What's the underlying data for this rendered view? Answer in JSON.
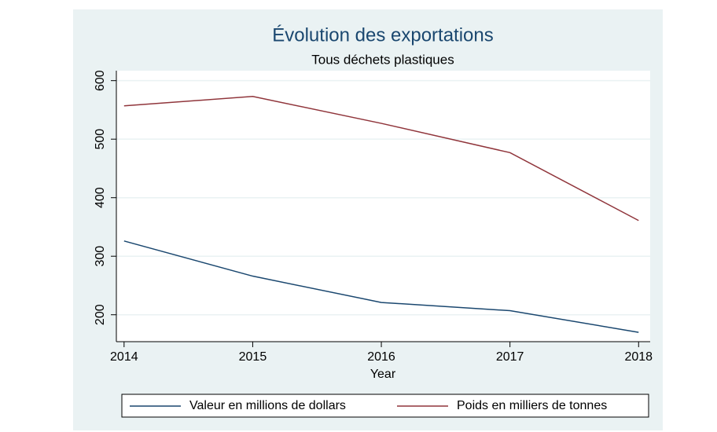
{
  "chart_data": {
    "type": "line",
    "title": "Évolution des exportations",
    "subtitle": "Tous déchets plastiques",
    "x_label": "Year",
    "x": [
      2014,
      2015,
      2016,
      2017,
      2018
    ],
    "series": [
      {
        "name": "Valeur en millions de dollars",
        "color": "#1a476f",
        "values": [
          326,
          266,
          221,
          207,
          170
        ]
      },
      {
        "name": "Poids en milliers de tonnes",
        "color": "#90353b",
        "values": [
          557,
          573,
          527,
          477,
          361
        ]
      }
    ],
    "xlim": [
      2013.94,
      2018.09
    ],
    "xticks": [
      2014,
      2015,
      2016,
      2017,
      2018
    ],
    "ylim": [
      154,
      617
    ],
    "yticks": [
      200,
      300,
      400,
      500,
      600
    ],
    "grid": true,
    "legend": "bottom"
  }
}
